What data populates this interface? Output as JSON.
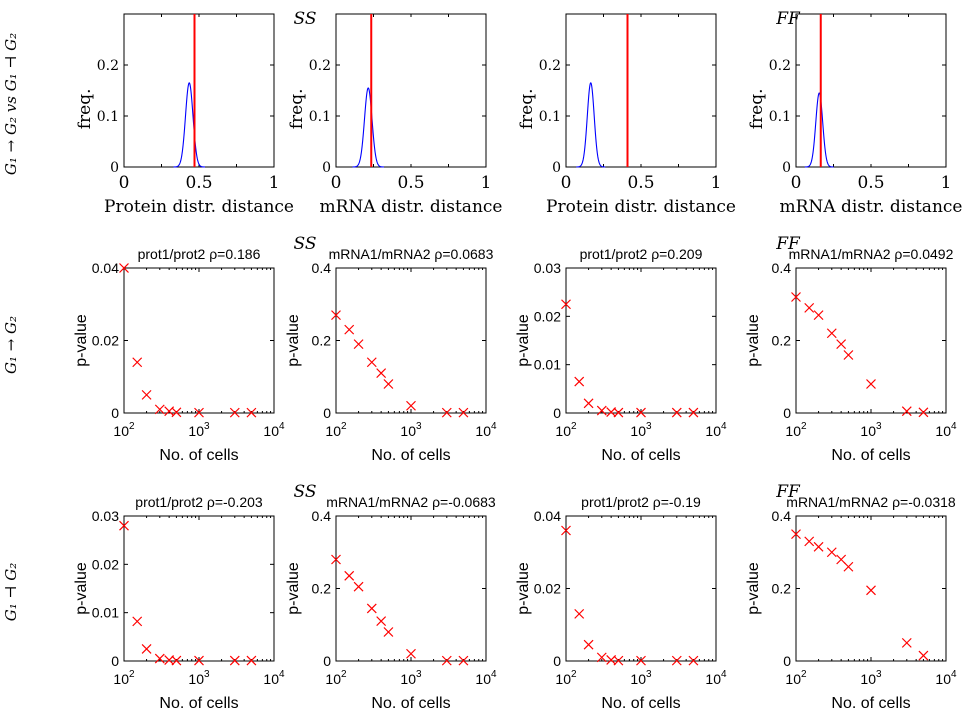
{
  "figure": {
    "column_group_labels": [
      "SS",
      "FF"
    ],
    "row_labels": [
      "G₁ → G₂ vs G₁ ⊣ G₂",
      "G₁ → G₂",
      "G₁ ⊣ G₂"
    ],
    "colors": {
      "curve": "#0000ff",
      "marker": "#ff0000",
      "axis": "#000000"
    }
  },
  "chart_data": [
    {
      "type": "line",
      "id": "r0c0",
      "group": "SS",
      "ylabel": "freq.",
      "xlabel": "Protein distr. distance",
      "xlim": [
        0,
        1
      ],
      "ylim": [
        0,
        0.3
      ],
      "xticks": [
        0,
        0.5,
        1
      ],
      "xtick_labels": [
        "0",
        "0.5",
        "1"
      ],
      "yticks": [
        0,
        0.1,
        0.2
      ],
      "ytick_labels": [
        "0",
        "0.1",
        "0.2"
      ],
      "series": [
        {
          "name": "null distribution",
          "kind": "gaussian",
          "mean": 0.435,
          "sd": 0.025,
          "peak": 0.165
        }
      ],
      "vline": 0.47
    },
    {
      "type": "line",
      "id": "r0c1",
      "group": "SS",
      "ylabel": "freq.",
      "xlabel": "mRNA distr. distance",
      "xlim": [
        0,
        1
      ],
      "ylim": [
        0,
        0.3
      ],
      "xticks": [
        0,
        0.5,
        1
      ],
      "xtick_labels": [
        "0",
        "0.5",
        "1"
      ],
      "yticks": [
        0,
        0.1,
        0.2
      ],
      "ytick_labels": [
        "0",
        "0.1",
        "0.2"
      ],
      "series": [
        {
          "name": "null distribution",
          "kind": "gaussian",
          "mean": 0.215,
          "sd": 0.025,
          "peak": 0.155
        }
      ],
      "vline": 0.235
    },
    {
      "type": "line",
      "id": "r0c2",
      "group": "FF",
      "ylabel": "freq.",
      "xlabel": "Protein distr. distance",
      "xlim": [
        0,
        1
      ],
      "ylim": [
        0,
        0.3
      ],
      "xticks": [
        0,
        0.5,
        1
      ],
      "xtick_labels": [
        "0",
        "0.5",
        "1"
      ],
      "yticks": [
        0,
        0.1,
        0.2
      ],
      "ytick_labels": [
        "0",
        "0.1",
        "0.2"
      ],
      "series": [
        {
          "name": "null distribution",
          "kind": "gaussian",
          "mean": 0.165,
          "sd": 0.023,
          "peak": 0.165
        }
      ],
      "vline": 0.41
    },
    {
      "type": "line",
      "id": "r0c3",
      "group": "FF",
      "ylabel": "freq.",
      "xlabel": "mRNA distr. distance",
      "xlim": [
        0,
        1
      ],
      "ylim": [
        0,
        0.3
      ],
      "xticks": [
        0,
        0.5,
        1
      ],
      "xtick_labels": [
        "0",
        "0.5",
        "1"
      ],
      "yticks": [
        0,
        0.1,
        0.2
      ],
      "ytick_labels": [
        "0",
        "0.1",
        "0.2"
      ],
      "series": [
        {
          "name": "null distribution",
          "kind": "gaussian",
          "mean": 0.155,
          "sd": 0.023,
          "peak": 0.145
        }
      ],
      "vline": 0.165
    },
    {
      "type": "scatter",
      "id": "r1c0",
      "title": "prot1/prot2  ρ=0.186",
      "ylabel": "p-value",
      "xlabel": "No. of cells",
      "xscale": "log",
      "xlim": [
        100,
        10000
      ],
      "ylim": [
        0,
        0.04
      ],
      "yticks": [
        0,
        0.02,
        0.04
      ],
      "ytick_labels": [
        "0",
        "0.02",
        "0.04"
      ],
      "x": [
        100,
        150,
        200,
        300,
        400,
        500,
        1000,
        3000,
        5000
      ],
      "y": [
        0.04,
        0.014,
        0.005,
        0.001,
        0.0005,
        0.0002,
        0.0001,
        0.0001,
        0.0001
      ]
    },
    {
      "type": "scatter",
      "id": "r1c1",
      "title": "mRNA1/mRNA2 ρ=0.0683",
      "ylabel": "p-value",
      "xlabel": "No. of cells",
      "xscale": "log",
      "xlim": [
        100,
        10000
      ],
      "ylim": [
        0,
        0.4
      ],
      "yticks": [
        0,
        0.2,
        0.4
      ],
      "ytick_labels": [
        "0",
        "0.2",
        "0.4"
      ],
      "x": [
        100,
        150,
        200,
        300,
        400,
        500,
        1000,
        3000,
        5000
      ],
      "y": [
        0.27,
        0.23,
        0.19,
        0.14,
        0.11,
        0.08,
        0.02,
        0.001,
        0.001
      ]
    },
    {
      "type": "scatter",
      "id": "r1c2",
      "title": "prot1/prot2  ρ=0.209",
      "ylabel": "p-value",
      "xlabel": "No. of cells",
      "xscale": "log",
      "xlim": [
        100,
        10000
      ],
      "ylim": [
        0,
        0.03
      ],
      "yticks": [
        0,
        0.01,
        0.02,
        0.03
      ],
      "ytick_labels": [
        "0",
        "0.01",
        "0.02",
        "0.03"
      ],
      "x": [
        100,
        150,
        200,
        300,
        400,
        500,
        1000,
        3000,
        5000
      ],
      "y": [
        0.0225,
        0.0065,
        0.002,
        0.0005,
        0.0002,
        0.0001,
        0.0001,
        0.0001,
        0.0001
      ]
    },
    {
      "type": "scatter",
      "id": "r1c3",
      "title": "mRNA1/mRNA2 ρ=0.0492",
      "ylabel": "p-value",
      "xlabel": "No. of cells",
      "xscale": "log",
      "xlim": [
        100,
        10000
      ],
      "ylim": [
        0,
        0.4
      ],
      "yticks": [
        0,
        0.2,
        0.4
      ],
      "ytick_labels": [
        "0",
        "0.2",
        "0.4"
      ],
      "x": [
        100,
        150,
        200,
        300,
        400,
        500,
        1000,
        3000,
        5000
      ],
      "y": [
        0.32,
        0.29,
        0.27,
        0.22,
        0.19,
        0.16,
        0.08,
        0.005,
        0.002
      ]
    },
    {
      "type": "scatter",
      "id": "r2c0",
      "title": "prot1/prot2  ρ=-0.203",
      "ylabel": "p-value",
      "xlabel": "No. of cells",
      "xscale": "log",
      "xlim": [
        100,
        10000
      ],
      "ylim": [
        0,
        0.03
      ],
      "yticks": [
        0,
        0.01,
        0.02,
        0.03
      ],
      "ytick_labels": [
        "0",
        "0.01",
        "0.02",
        "0.03"
      ],
      "x": [
        100,
        150,
        200,
        300,
        400,
        500,
        1000,
        3000,
        5000
      ],
      "y": [
        0.028,
        0.0082,
        0.0025,
        0.0005,
        0.0002,
        0.0001,
        0.0001,
        0.0001,
        0.0001
      ]
    },
    {
      "type": "scatter",
      "id": "r2c1",
      "title": "mRNA1/mRNA2 ρ=-0.0683",
      "ylabel": "p-value",
      "xlabel": "No. of cells",
      "xscale": "log",
      "xlim": [
        100,
        10000
      ],
      "ylim": [
        0,
        0.4
      ],
      "yticks": [
        0,
        0.2,
        0.4
      ],
      "ytick_labels": [
        "0",
        "0.2",
        "0.4"
      ],
      "x": [
        100,
        150,
        200,
        300,
        400,
        500,
        1000,
        3000,
        5000
      ],
      "y": [
        0.28,
        0.235,
        0.205,
        0.145,
        0.11,
        0.08,
        0.02,
        0.001,
        0.001
      ]
    },
    {
      "type": "scatter",
      "id": "r2c2",
      "title": "prot1/prot2  ρ=-0.19",
      "ylabel": "p-value",
      "xlabel": "No. of cells",
      "xscale": "log",
      "xlim": [
        100,
        10000
      ],
      "ylim": [
        0,
        0.04
      ],
      "yticks": [
        0,
        0.02,
        0.04
      ],
      "ytick_labels": [
        "0",
        "0.02",
        "0.04"
      ],
      "x": [
        100,
        150,
        200,
        300,
        400,
        500,
        1000,
        3000,
        5000
      ],
      "y": [
        0.036,
        0.013,
        0.0045,
        0.001,
        0.0003,
        0.0001,
        0.0001,
        0.0001,
        0.0001
      ]
    },
    {
      "type": "scatter",
      "id": "r2c3",
      "title": "mRNA1/mRNA2 ρ=-0.0318",
      "ylabel": "p-value",
      "xlabel": "No. of cells",
      "xscale": "log",
      "xlim": [
        100,
        10000
      ],
      "ylim": [
        0,
        0.4
      ],
      "yticks": [
        0,
        0.2,
        0.4
      ],
      "ytick_labels": [
        "0",
        "0.2",
        "0.4"
      ],
      "x": [
        100,
        150,
        200,
        300,
        400,
        500,
        1000,
        3000,
        5000
      ],
      "y": [
        0.35,
        0.33,
        0.315,
        0.3,
        0.28,
        0.26,
        0.195,
        0.05,
        0.015
      ]
    }
  ]
}
